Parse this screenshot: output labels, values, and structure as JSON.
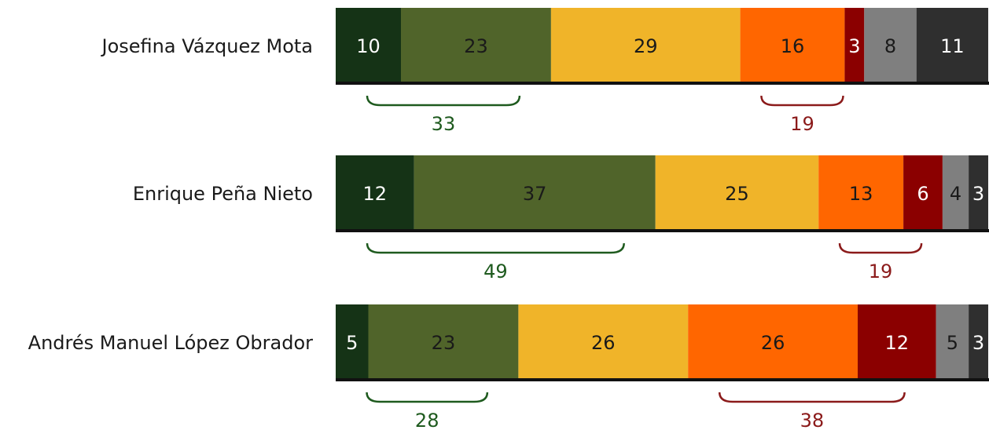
{
  "chart_data": {
    "type": "bar",
    "orientation": "horizontal",
    "stacked": true,
    "xlim": [
      0,
      100
    ],
    "grid": false,
    "legend": "none",
    "title": "",
    "xlabel": "",
    "ylabel": "",
    "categories": [
      "Josefina Vázquez Mota",
      "Enrique Peña Nieto",
      "Andrés Manuel López Obrador"
    ],
    "series": [
      {
        "color": "#153316",
        "label_color": "#ffffff",
        "values": [
          10,
          12,
          5
        ]
      },
      {
        "color": "#50642a",
        "label_color": "#1a1a1a",
        "values": [
          23,
          37,
          23
        ]
      },
      {
        "color": "#f0b429",
        "label_color": "#1a1a1a",
        "values": [
          29,
          25,
          26
        ]
      },
      {
        "color": "#ff6600",
        "label_color": "#1a1a1a",
        "values": [
          16,
          13,
          26
        ]
      },
      {
        "color": "#8b0000",
        "label_color": "#ffffff",
        "values": [
          3,
          6,
          12
        ]
      },
      {
        "color": "#7f7f7f",
        "label_color": "#1a1a1a",
        "values": [
          8,
          4,
          5
        ]
      },
      {
        "color": "#2f2f2f",
        "label_color": "#ffffff",
        "values": [
          11,
          3,
          3
        ]
      }
    ],
    "brackets": [
      {
        "series_range": [
          0,
          1
        ],
        "color": "#1e5a1e",
        "values": [
          33,
          49,
          28
        ]
      },
      {
        "series_range": [
          3,
          4
        ],
        "color": "#8b1a1a",
        "values": [
          19,
          19,
          38
        ]
      }
    ]
  }
}
